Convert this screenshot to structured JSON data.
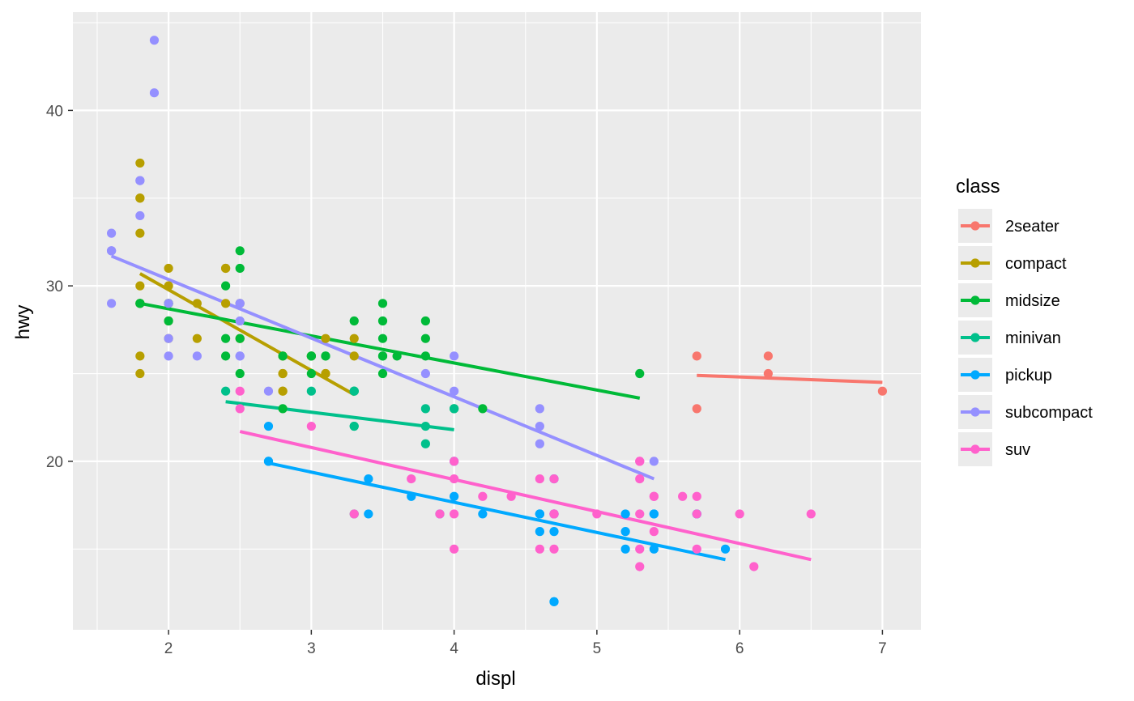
{
  "chart_data": {
    "type": "scatter",
    "title": "",
    "xlabel": "displ",
    "ylabel": "hwy",
    "xlim": [
      1.33,
      7.27
    ],
    "ylim": [
      10.4,
      45.6
    ],
    "x_ticks": [
      2,
      3,
      4,
      5,
      6,
      7
    ],
    "y_ticks": [
      20,
      30,
      40
    ],
    "grid": true,
    "legend": {
      "title": "class",
      "position": "right"
    },
    "series": [
      {
        "name": "2seater",
        "color": "#F8766D",
        "points": [
          [
            5.7,
            26
          ],
          [
            5.7,
            23
          ],
          [
            6.2,
            26
          ],
          [
            6.2,
            25
          ],
          [
            7.0,
            24
          ]
        ],
        "fit": [
          [
            5.7,
            24.9
          ],
          [
            7.0,
            24.5
          ]
        ]
      },
      {
        "name": "compact",
        "color": "#B79F00",
        "points": [
          [
            1.8,
            29
          ],
          [
            1.8,
            29
          ],
          [
            2.0,
            31
          ],
          [
            2.0,
            30
          ],
          [
            2.8,
            26
          ],
          [
            2.8,
            26
          ],
          [
            3.1,
            27
          ],
          [
            1.8,
            26
          ],
          [
            1.8,
            25
          ],
          [
            2.0,
            28
          ],
          [
            2.0,
            27
          ],
          [
            2.8,
            25
          ],
          [
            2.8,
            25
          ],
          [
            3.1,
            25
          ],
          [
            3.1,
            25
          ],
          [
            2.2,
            27
          ],
          [
            2.2,
            29
          ],
          [
            2.4,
            31
          ],
          [
            2.4,
            31
          ],
          [
            3.0,
            26
          ],
          [
            3.3,
            26
          ],
          [
            3.3,
            27
          ],
          [
            1.8,
            30
          ],
          [
            1.8,
            33
          ],
          [
            1.8,
            35
          ],
          [
            1.8,
            37
          ],
          [
            1.8,
            35
          ],
          [
            2.5,
            29
          ],
          [
            2.5,
            27
          ],
          [
            2.8,
            24
          ],
          [
            2.8,
            24
          ],
          [
            3.0,
            26
          ],
          [
            2.0,
            29
          ],
          [
            2.4,
            29
          ],
          [
            2.5,
            27
          ]
        ],
        "fit": [
          [
            1.8,
            30.7
          ],
          [
            3.3,
            23.8
          ]
        ]
      },
      {
        "name": "midsize",
        "color": "#00BA38",
        "points": [
          [
            2.4,
            30
          ],
          [
            2.4,
            26
          ],
          [
            2.5,
            32
          ],
          [
            2.5,
            31
          ],
          [
            3.5,
            29
          ],
          [
            3.5,
            28
          ],
          [
            3.0,
            26
          ],
          [
            3.0,
            26
          ],
          [
            3.5,
            26
          ],
          [
            3.3,
            28
          ],
          [
            3.8,
            28
          ],
          [
            3.8,
            27
          ],
          [
            3.8,
            26
          ],
          [
            3.5,
            26
          ],
          [
            2.4,
            27
          ],
          [
            3.1,
            26
          ],
          [
            3.5,
            27
          ],
          [
            3.6,
            26
          ],
          [
            1.8,
            29
          ],
          [
            1.8,
            29
          ],
          [
            2.0,
            28
          ],
          [
            2.0,
            29
          ],
          [
            2.8,
            26
          ],
          [
            3.1,
            26
          ],
          [
            4.2,
            23
          ],
          [
            5.3,
            25
          ],
          [
            2.5,
            27
          ],
          [
            2.5,
            25
          ],
          [
            3.0,
            25
          ],
          [
            3.5,
            25
          ],
          [
            2.8,
            23
          ],
          [
            3.3,
            24
          ],
          [
            4.0,
            23
          ]
        ],
        "fit": [
          [
            1.8,
            29.0
          ],
          [
            5.3,
            23.6
          ]
        ]
      },
      {
        "name": "minivan",
        "color": "#00C08B",
        "points": [
          [
            2.4,
            24
          ],
          [
            3.0,
            24
          ],
          [
            3.3,
            22
          ],
          [
            3.3,
            22
          ],
          [
            3.3,
            24
          ],
          [
            3.3,
            24
          ],
          [
            3.3,
            17
          ],
          [
            3.8,
            22
          ],
          [
            3.8,
            21
          ],
          [
            3.8,
            23
          ],
          [
            4.0,
            23
          ]
        ],
        "fit": [
          [
            2.4,
            23.4
          ],
          [
            4.0,
            21.8
          ]
        ]
      },
      {
        "name": "pickup",
        "color": "#00A9FF",
        "points": [
          [
            2.7,
            20
          ],
          [
            2.7,
            20
          ],
          [
            2.7,
            22
          ],
          [
            3.4,
            17
          ],
          [
            3.4,
            19
          ],
          [
            4.0,
            20
          ],
          [
            4.0,
            18
          ],
          [
            4.7,
            19
          ],
          [
            4.7,
            17
          ],
          [
            4.7,
            12
          ],
          [
            5.2,
            17
          ],
          [
            5.2,
            16
          ],
          [
            5.7,
            17
          ],
          [
            5.9,
            15
          ],
          [
            4.7,
            17
          ],
          [
            4.7,
            16
          ],
          [
            4.7,
            12
          ],
          [
            4.7,
            17
          ],
          [
            5.2,
            15
          ],
          [
            5.7,
            17
          ],
          [
            3.7,
            18
          ],
          [
            4.6,
            16
          ],
          [
            4.6,
            17
          ],
          [
            5.4,
            15
          ],
          [
            5.4,
            17
          ],
          [
            4.2,
            17
          ],
          [
            4.6,
            17
          ],
          [
            3.9,
            17
          ],
          [
            5.4,
            17
          ],
          [
            4.6,
            17
          ]
        ],
        "fit": [
          [
            2.7,
            19.9
          ],
          [
            5.9,
            14.4
          ]
        ]
      },
      {
        "name": "subcompact",
        "color": "#9590FF",
        "points": [
          [
            1.6,
            33
          ],
          [
            1.6,
            32
          ],
          [
            1.6,
            32
          ],
          [
            1.6,
            29
          ],
          [
            1.6,
            32
          ],
          [
            1.8,
            34
          ],
          [
            1.8,
            36
          ],
          [
            1.8,
            36
          ],
          [
            1.9,
            44
          ],
          [
            1.9,
            41
          ],
          [
            2.0,
            29
          ],
          [
            2.0,
            26
          ],
          [
            2.0,
            27
          ],
          [
            2.2,
            26
          ],
          [
            2.5,
            29
          ],
          [
            2.5,
            26
          ],
          [
            2.5,
            28
          ],
          [
            2.7,
            24
          ],
          [
            3.8,
            25
          ],
          [
            4.0,
            26
          ],
          [
            4.0,
            24
          ],
          [
            4.6,
            23
          ],
          [
            4.6,
            22
          ],
          [
            4.6,
            21
          ],
          [
            5.4,
            20
          ],
          [
            2.5,
            29
          ],
          [
            2.5,
            26
          ]
        ],
        "fit": [
          [
            1.6,
            31.7
          ],
          [
            5.4,
            19.0
          ]
        ]
      },
      {
        "name": "suv",
        "color": "#FF61CC",
        "points": [
          [
            5.3,
            20
          ],
          [
            5.3,
            15
          ],
          [
            5.3,
            20
          ],
          [
            5.7,
            17
          ],
          [
            6.0,
            17
          ],
          [
            5.3,
            19
          ],
          [
            5.3,
            14
          ],
          [
            5.7,
            15
          ],
          [
            6.5,
            17
          ],
          [
            3.7,
            19
          ],
          [
            4.7,
            19
          ],
          [
            4.7,
            17
          ],
          [
            4.7,
            15
          ],
          [
            5.7,
            18
          ],
          [
            6.1,
            14
          ],
          [
            4.0,
            20
          ],
          [
            4.0,
            15
          ],
          [
            4.0,
            19
          ],
          [
            4.6,
            19
          ],
          [
            5.0,
            17
          ],
          [
            4.2,
            18
          ],
          [
            4.4,
            18
          ],
          [
            4.6,
            15
          ],
          [
            5.4,
            18
          ],
          [
            5.4,
            16
          ],
          [
            5.4,
            18
          ],
          [
            4.0,
            17
          ],
          [
            4.7,
            17
          ],
          [
            5.6,
            18
          ],
          [
            2.5,
            24
          ],
          [
            2.5,
            23
          ],
          [
            3.0,
            22
          ],
          [
            3.9,
            17
          ],
          [
            4.7,
            17
          ],
          [
            5.3,
            17
          ],
          [
            3.3,
            17
          ]
        ],
        "fit": [
          [
            2.5,
            21.7
          ],
          [
            6.5,
            14.4
          ]
        ]
      }
    ]
  }
}
